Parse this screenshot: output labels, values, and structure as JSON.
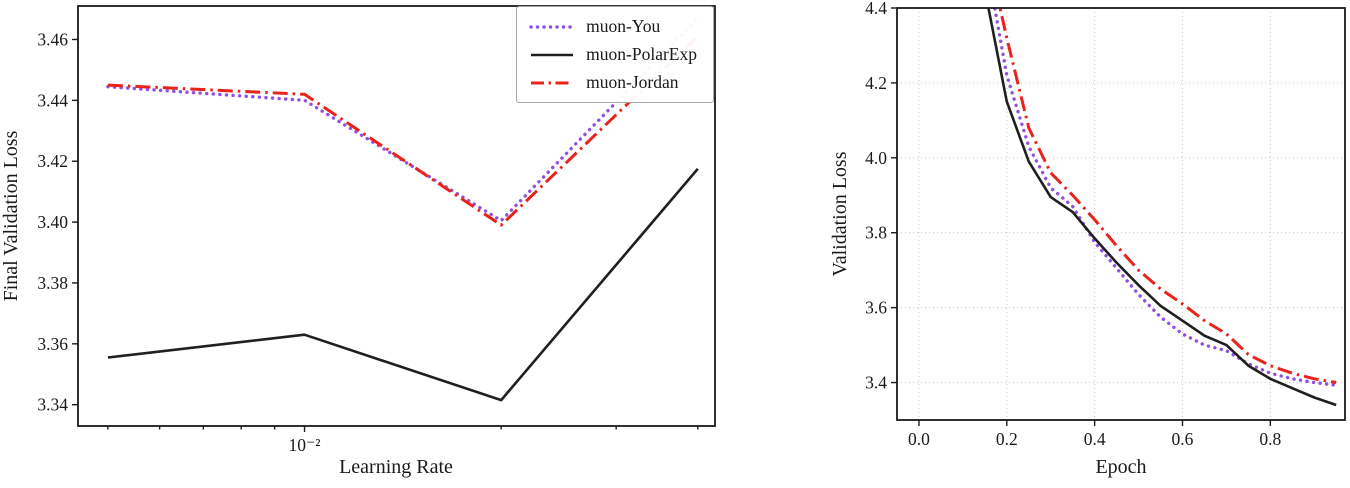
{
  "page": {
    "background": "#ffffff"
  },
  "chart_data": [
    {
      "id": "lr_sweep",
      "type": "line",
      "title": "",
      "xlabel": "Learning Rate",
      "ylabel": "Final Validation Loss",
      "x_scale": "log",
      "xlim": [
        0.0045,
        0.0425
      ],
      "ylim": [
        3.333,
        3.471
      ],
      "grid": false,
      "legend": {
        "position": "upper right",
        "entries": [
          "muon-You",
          "muon-PolarExp",
          "muon-Jordan"
        ]
      },
      "xticks": [
        {
          "value": 0.01,
          "label": "10⁻²"
        }
      ],
      "minor_xticks": [
        0.005,
        0.006,
        0.007,
        0.008,
        0.009,
        0.02,
        0.03,
        0.04
      ],
      "yticks": [
        {
          "value": 3.34,
          "label": "3.34"
        },
        {
          "value": 3.36,
          "label": "3.36"
        },
        {
          "value": 3.38,
          "label": "3.38"
        },
        {
          "value": 3.4,
          "label": "3.40"
        },
        {
          "value": 3.42,
          "label": "3.42"
        },
        {
          "value": 3.44,
          "label": "3.44"
        },
        {
          "value": 3.46,
          "label": "3.46"
        }
      ],
      "series": [
        {
          "name": "muon-You",
          "color": "#9050e0",
          "line_style": "dotted",
          "line_width": 3.4,
          "x": [
            0.005,
            0.01,
            0.02,
            0.04
          ],
          "y": [
            3.4445,
            3.44,
            3.4005,
            3.467
          ]
        },
        {
          "name": "muon-PolarExp",
          "color": "#1f1f1f",
          "line_style": "solid",
          "line_width": 2.6,
          "x": [
            0.005,
            0.01,
            0.02,
            0.04
          ],
          "y": [
            3.3555,
            3.363,
            3.3415,
            3.4175
          ]
        },
        {
          "name": "muon-Jordan",
          "color": "#e8231c",
          "line_style": "dashdot",
          "line_width": 3.0,
          "x": [
            0.005,
            0.01,
            0.02,
            0.04
          ],
          "y": [
            3.445,
            3.442,
            3.399,
            3.461
          ]
        }
      ]
    },
    {
      "id": "training_curves",
      "type": "line",
      "title": "",
      "xlabel": "Epoch",
      "ylabel": "Validation Loss",
      "x_scale": "linear",
      "xlim": [
        -0.05,
        0.97
      ],
      "ylim": [
        3.3,
        4.4
      ],
      "grid": true,
      "legend": null,
      "xticks": [
        {
          "value": 0.0,
          "label": "0.0"
        },
        {
          "value": 0.2,
          "label": "0.2"
        },
        {
          "value": 0.4,
          "label": "0.4"
        },
        {
          "value": 0.6,
          "label": "0.6"
        },
        {
          "value": 0.8,
          "label": "0.8"
        }
      ],
      "minor_xticks": [],
      "yticks": [
        {
          "value": 3.4,
          "label": "3.4"
        },
        {
          "value": 3.6,
          "label": "3.6"
        },
        {
          "value": 3.8,
          "label": "3.8"
        },
        {
          "value": 4.0,
          "label": "4.0"
        },
        {
          "value": 4.2,
          "label": "4.2"
        },
        {
          "value": 4.4,
          "label": "4.4"
        }
      ],
      "series": [
        {
          "name": "muon-You",
          "color": "#9050e0",
          "line_style": "dotted",
          "line_width": 3.4,
          "x": [
            0.165,
            0.2,
            0.25,
            0.3,
            0.35,
            0.4,
            0.45,
            0.5,
            0.55,
            0.6,
            0.65,
            0.7,
            0.75,
            0.8,
            0.85,
            0.9,
            0.95
          ],
          "y": [
            4.45,
            4.22,
            4.03,
            3.92,
            3.87,
            3.775,
            3.705,
            3.635,
            3.575,
            3.53,
            3.5,
            3.485,
            3.45,
            3.425,
            3.41,
            3.4,
            3.393
          ]
        },
        {
          "name": "muon-PolarExp",
          "color": "#1f1f1f",
          "line_style": "solid",
          "line_width": 2.6,
          "x": [
            0.15,
            0.2,
            0.25,
            0.3,
            0.35,
            0.4,
            0.45,
            0.5,
            0.55,
            0.6,
            0.65,
            0.7,
            0.75,
            0.8,
            0.85,
            0.9,
            0.95
          ],
          "y": [
            4.45,
            4.15,
            3.99,
            3.895,
            3.855,
            3.785,
            3.72,
            3.66,
            3.605,
            3.565,
            3.525,
            3.5,
            3.445,
            3.41,
            3.385,
            3.36,
            3.34
          ]
        },
        {
          "name": "muon-Jordan",
          "color": "#e8231c",
          "line_style": "dashdot",
          "line_width": 3.0,
          "x": [
            0.175,
            0.2,
            0.25,
            0.3,
            0.35,
            0.4,
            0.45,
            0.5,
            0.55,
            0.6,
            0.65,
            0.7,
            0.75,
            0.8,
            0.85,
            0.9,
            0.95
          ],
          "y": [
            4.45,
            4.32,
            4.08,
            3.96,
            3.9,
            3.835,
            3.765,
            3.7,
            3.65,
            3.61,
            3.565,
            3.53,
            3.475,
            3.445,
            3.425,
            3.41,
            3.4
          ]
        }
      ]
    }
  ]
}
